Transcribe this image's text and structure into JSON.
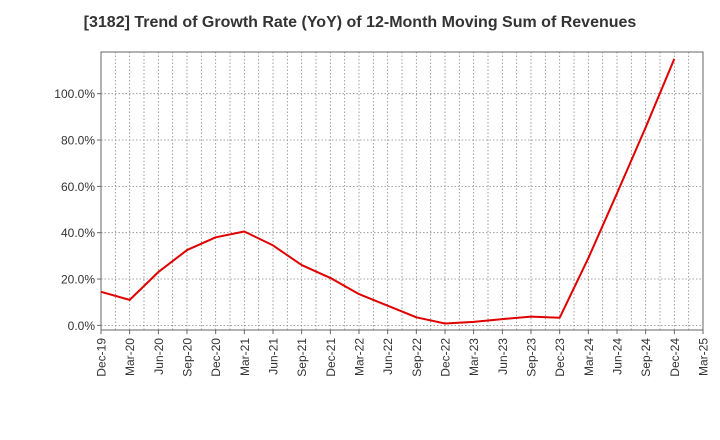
{
  "chart_data": {
    "type": "line",
    "title": "[3182]  Trend of Growth Rate (YoY) of 12-Month Moving Sum of Revenues",
    "xlabel": "",
    "ylabel": "",
    "x_ticks": [
      "Dec-19",
      "Mar-20",
      "Jun-20",
      "Sep-20",
      "Dec-20",
      "Mar-21",
      "Jun-21",
      "Sep-21",
      "Dec-21",
      "Mar-22",
      "Jun-22",
      "Sep-22",
      "Dec-22",
      "Mar-23",
      "Jun-23",
      "Sep-23",
      "Dec-23",
      "Mar-24",
      "Jun-24",
      "Sep-24",
      "Dec-24",
      "Mar-25"
    ],
    "y_ticks": [
      "0.0%",
      "20.0%",
      "40.0%",
      "60.0%",
      "80.0%",
      "100.0%"
    ],
    "y_tick_values": [
      0,
      20,
      40,
      60,
      80,
      100
    ],
    "ylim": [
      -2,
      118
    ],
    "grid": true,
    "series": [
      {
        "color": "#e00000",
        "x": [
          "Dec-19",
          "Mar-20",
          "Jun-20",
          "Sep-20",
          "Dec-20",
          "Mar-21",
          "Jun-21",
          "Sep-21",
          "Dec-21",
          "Mar-22",
          "Jun-22",
          "Sep-22",
          "Dec-22",
          "Mar-23",
          "Jun-23",
          "Sep-23",
          "Dec-23",
          "Mar-24",
          "Jun-24",
          "Sep-24",
          "Dec-24"
        ],
        "values": [
          14.5,
          11.0,
          23.0,
          32.5,
          38.0,
          40.5,
          34.5,
          26.0,
          20.5,
          13.5,
          8.5,
          3.5,
          0.8,
          1.5,
          2.7,
          3.8,
          3.3,
          29.0,
          57.0,
          85.5,
          115.0
        ]
      }
    ]
  }
}
